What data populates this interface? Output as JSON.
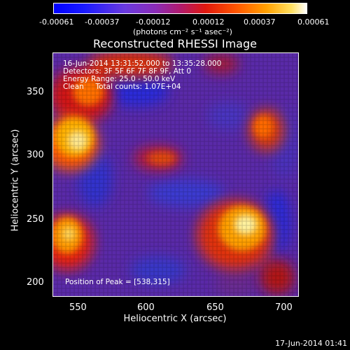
{
  "colorbar": {
    "ticks": [
      "-0.00061",
      "-0.00037",
      "-0.00012",
      "0.00012",
      "0.00037",
      "0.00061"
    ],
    "unit": "(photons cm⁻² s⁻¹ asec⁻²)"
  },
  "plot": {
    "title": "Reconstructed RHESSI Image",
    "xlabel": "Heliocentric X (arcsec)",
    "ylabel": "Heliocentric Y (arcsec)",
    "xticks": [
      "550",
      "600",
      "650",
      "700"
    ],
    "yticks": [
      "350",
      "300",
      "250",
      "200"
    ],
    "info_lines": [
      "16-Jun-2014 13:31:52.000 to 13:35:28.000",
      "Detectors: 3F 5F 6F 7F 8F 9F, Att 0",
      "Energy Range: 25.0 - 50.0 keV",
      "Clean     Total counts: 1.07E+04"
    ],
    "peak_label": "Position of Peak = [538,315]"
  },
  "footer": {
    "date": "17-Jun-2014 01:41"
  }
}
